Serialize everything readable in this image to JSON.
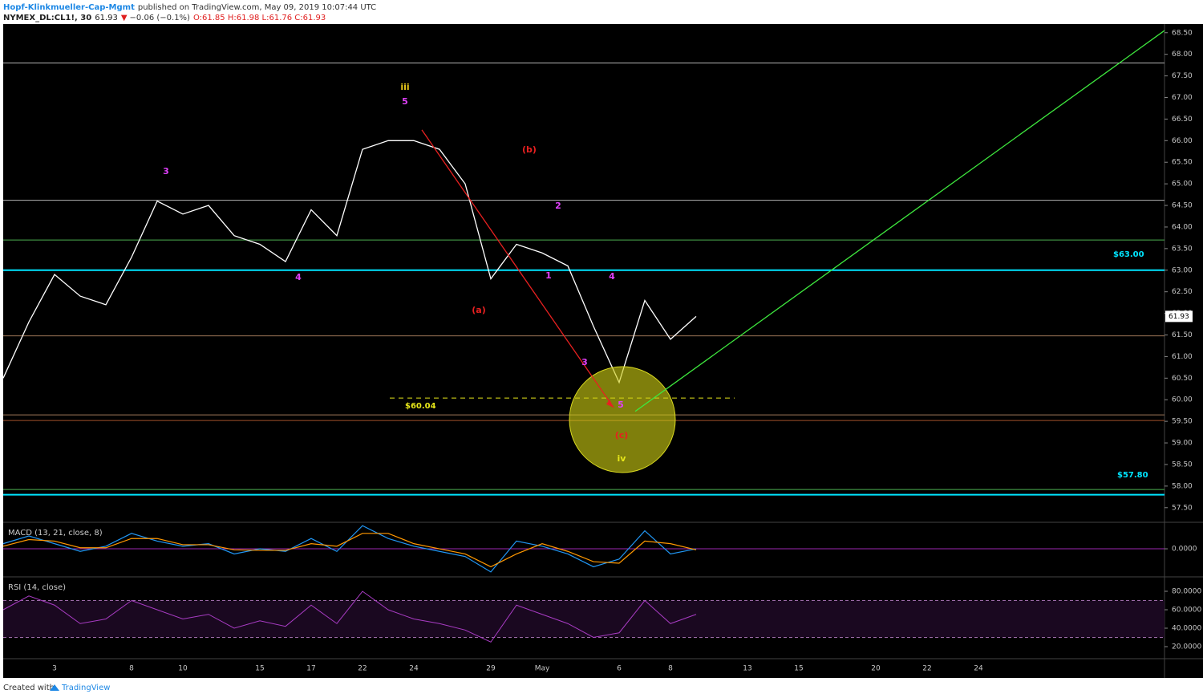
{
  "header": {
    "author": "Hopf-Klinkmueller-Cap-Mgmt",
    "published": "published on TradingView.com, May 09, 2019 10:07:44 UTC",
    "symbol": "NYMEX_DL:CL1!, 30",
    "last": "61.93",
    "arrow": "▼",
    "change": "−0.06 (−0.1%)",
    "ohlc": "O:61.85 H:61.98 L:61.76 C:61.93"
  },
  "chart_data": [
    {
      "type": "line",
      "categories": [
        null,
        null,
        "3",
        null,
        null,
        "8",
        null,
        "10",
        null,
        null,
        "15",
        null,
        "17",
        null,
        "22",
        null,
        "24",
        null,
        null,
        "29",
        null,
        "May",
        null,
        null,
        "6",
        null,
        "8",
        null,
        null,
        "13",
        null,
        "15",
        null,
        null,
        "20",
        null,
        "22",
        null,
        "24",
        null,
        null,
        null,
        null,
        null,
        null
      ],
      "series": [
        {
          "color": "#ffffff",
          "values": [
            60.5,
            61.8,
            62.9,
            62.4,
            62.2,
            63.3,
            64.6,
            64.3,
            64.5,
            63.8,
            63.6,
            63.2,
            64.4,
            63.8,
            65.8,
            66.0,
            66.0,
            65.8,
            65.0,
            62.8,
            63.6,
            63.4,
            63.1,
            61.7,
            60.4,
            62.3,
            61.4,
            61.93,
            null,
            null,
            null,
            null,
            null,
            null,
            null,
            null,
            null,
            null,
            null,
            null,
            null,
            null,
            null,
            null,
            null
          ]
        }
      ],
      "ylim": [
        57.18,
        68.7
      ],
      "yticks": [
        {
          "value": 57.5,
          "label": "57.50"
        },
        {
          "value": 58,
          "label": "58.00"
        },
        {
          "value": 58.5,
          "label": "58.50"
        },
        {
          "value": 59,
          "label": "59.00"
        },
        {
          "value": 59.5,
          "label": "59.50"
        },
        {
          "value": 60,
          "label": "60.00"
        },
        {
          "value": 60.5,
          "label": "60.50"
        },
        {
          "value": 61,
          "label": "61.00"
        },
        {
          "value": 61.5,
          "label": "61.50"
        },
        {
          "value": 62,
          "label": "62.00"
        },
        {
          "value": 62.5,
          "label": "62.50"
        },
        {
          "value": 63,
          "label": "63.00"
        },
        {
          "value": 63.5,
          "label": "63.50"
        },
        {
          "value": 64,
          "label": "64.00"
        },
        {
          "value": 64.5,
          "label": "64.50"
        },
        {
          "value": 65,
          "label": "65.00"
        },
        {
          "value": 65.5,
          "label": "65.50"
        },
        {
          "value": 66,
          "label": "66.00"
        },
        {
          "value": 66.5,
          "label": "66.50"
        },
        {
          "value": 67,
          "label": "67.00"
        },
        {
          "value": 67.5,
          "label": "67.50"
        },
        {
          "value": 68,
          "label": "68.00"
        },
        {
          "value": 68.5,
          "label": "68.50"
        }
      ],
      "levels": [
        {
          "value": 67.8,
          "color": "#b2b2b2"
        },
        {
          "value": 64.62,
          "color": "#b2b2b2"
        },
        {
          "value": 63.7,
          "color": "#4caf50"
        },
        {
          "value": 63,
          "color": "#00e5ff",
          "label": "$63.00"
        },
        {
          "value": 61.48,
          "color": "#a0785a"
        },
        {
          "value": 60.04,
          "color": "#e6e619",
          "dashed": true,
          "label": "$60.04"
        },
        {
          "value": 59.65,
          "color": "#a0785a"
        },
        {
          "value": 59.52,
          "color": "#a0502a"
        },
        {
          "value": 57.92,
          "color": "#4caf50"
        },
        {
          "value": 57.8,
          "color": "#00e5ff",
          "label": "$57.80"
        }
      ],
      "trendlines": [
        {
          "color": "#3ee83e",
          "values": [
            59.73,
            68.55
          ]
        },
        {
          "color": "#e82020",
          "values": [
            66.25,
            59.82
          ]
        }
      ],
      "annotations": [
        {
          "text": "iii",
          "color": "#e6c619"
        },
        {
          "text": "5",
          "color": "#e040fb"
        },
        {
          "text": "3",
          "color": "#e040fb"
        },
        {
          "text": "4",
          "color": "#e040fb"
        },
        {
          "text": "(b)",
          "color": "#e82020"
        },
        {
          "text": "2",
          "color": "#e040fb"
        },
        {
          "text": "1",
          "color": "#e040fb"
        },
        {
          "text": "4",
          "color": "#e040fb"
        },
        {
          "text": "(a)",
          "color": "#e82020"
        },
        {
          "text": "3",
          "color": "#e040fb"
        },
        {
          "text": "5",
          "color": "#e040fb"
        },
        {
          "text": "(c)",
          "color": "#e82020"
        },
        {
          "text": "iv",
          "color": "#e6e619"
        }
      ]
    },
    {
      "type": "line",
      "title": "MACD (13, 21, close, 8)",
      "series": [
        {
          "color": "#2196f3",
          "values": [
            0.1,
            0.25,
            0.1,
            -0.05,
            0.05,
            0.3,
            0.15,
            0.05,
            0.1,
            -0.1,
            0.0,
            -0.05,
            0.2,
            -0.05,
            0.45,
            0.2,
            0.05,
            -0.05,
            -0.15,
            -0.45,
            0.15,
            0.05,
            -0.1,
            -0.35,
            -0.2,
            0.35,
            -0.1,
            0.0,
            null,
            null,
            null,
            null,
            null,
            null,
            null,
            null,
            null,
            null,
            null,
            null,
            null,
            null,
            null,
            null,
            null
          ]
        },
        {
          "color": "#ff9800",
          "values": [
            0.05,
            0.18,
            0.15,
            0.02,
            0.02,
            0.2,
            0.2,
            0.08,
            0.08,
            -0.02,
            -0.03,
            -0.03,
            0.1,
            0.05,
            0.3,
            0.3,
            0.1,
            0.0,
            -0.1,
            -0.35,
            -0.1,
            0.1,
            -0.05,
            -0.25,
            -0.28,
            0.15,
            0.1,
            -0.02,
            null,
            null,
            null,
            null,
            null,
            null,
            null,
            null,
            null,
            null,
            null,
            null,
            null,
            null,
            null,
            null,
            null
          ]
        }
      ],
      "zero_color": "#9c27b0",
      "ylim": [
        -0.53,
        0.5
      ],
      "yticks": [
        {
          "value": 0,
          "label": "0.0000"
        }
      ]
    },
    {
      "type": "line",
      "title": "RSI (14, close)",
      "series": [
        {
          "color": "#a93cc4",
          "values": [
            60,
            75,
            65,
            45,
            50,
            70,
            60,
            50,
            55,
            40,
            48,
            42,
            65,
            45,
            80,
            60,
            50,
            45,
            38,
            25,
            65,
            55,
            45,
            30,
            35,
            70,
            45,
            55,
            null,
            null,
            null,
            null,
            null,
            null,
            null,
            null,
            null,
            null,
            null,
            null,
            null,
            null,
            null,
            null,
            null
          ]
        }
      ],
      "band": [
        30,
        70
      ],
      "ylim": [
        7.8,
        94.8
      ],
      "yticks": [
        {
          "value": 20,
          "label": "20.0000"
        },
        {
          "value": 40,
          "label": "40.0000"
        },
        {
          "value": 60,
          "label": "60.0000"
        },
        {
          "value": 80,
          "label": "80.0000"
        }
      ]
    }
  ],
  "footer": {
    "created": "Created with",
    "brand": "TradingView"
  }
}
